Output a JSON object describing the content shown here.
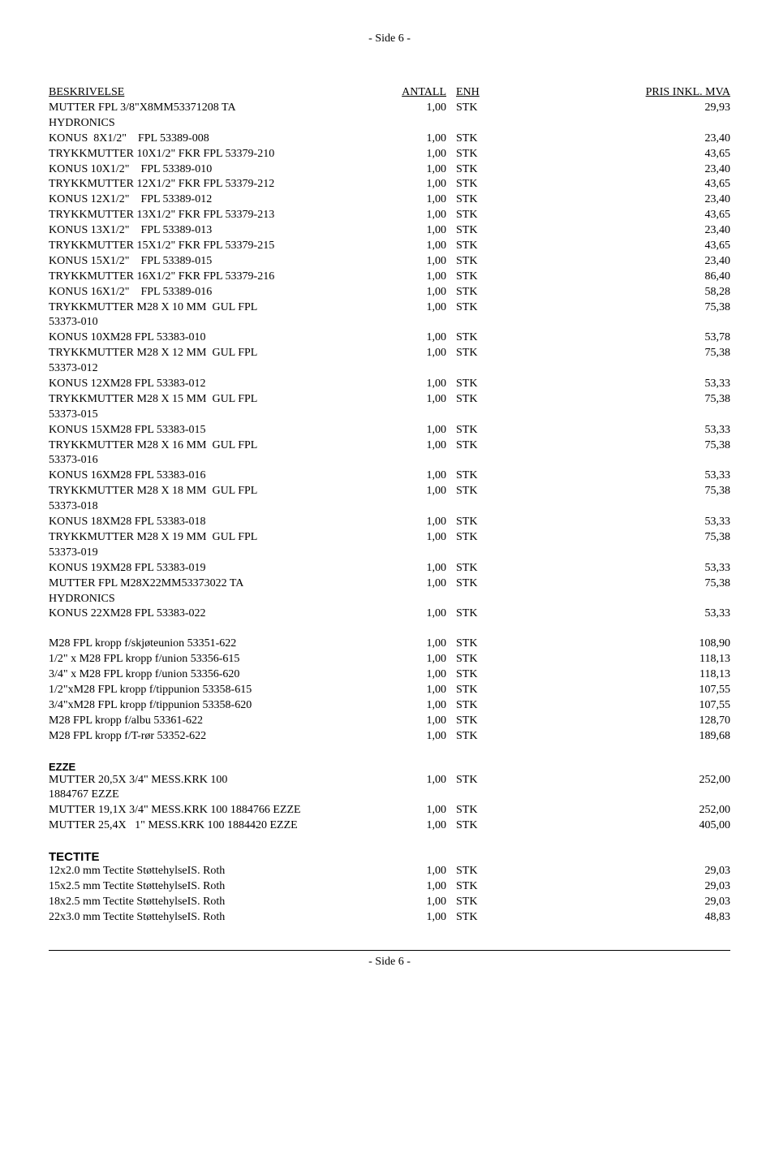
{
  "page_header": "- Side 6 -",
  "page_footer": "- Side 6 -",
  "headers": {
    "desc": "BESKRIVELSE",
    "qty": "ANTALL",
    "unit": "ENH",
    "price": "PRIS INKL. MVA"
  },
  "sections": [
    {
      "rows": [
        {
          "desc": "MUTTER FPL 3/8\"X8MM53371208 TA\nHYDRONICS",
          "qty": "1,00",
          "unit": "STK",
          "price": "29,93"
        },
        {
          "desc": "KONUS  8X1/2\"    FPL 53389-008",
          "qty": "1,00",
          "unit": "STK",
          "price": "23,40"
        },
        {
          "desc": "TRYKKMUTTER 10X1/2\" FKR FPL 53379-210",
          "qty": "1,00",
          "unit": "STK",
          "price": "43,65"
        },
        {
          "desc": "KONUS 10X1/2\"    FPL 53389-010",
          "qty": "1,00",
          "unit": "STK",
          "price": "23,40"
        },
        {
          "desc": "TRYKKMUTTER 12X1/2\" FKR FPL 53379-212",
          "qty": "1,00",
          "unit": "STK",
          "price": "43,65"
        },
        {
          "desc": "KONUS 12X1/2\"    FPL 53389-012",
          "qty": "1,00",
          "unit": "STK",
          "price": "23,40"
        },
        {
          "desc": "TRYKKMUTTER 13X1/2\" FKR FPL 53379-213",
          "qty": "1,00",
          "unit": "STK",
          "price": "43,65"
        },
        {
          "desc": "KONUS 13X1/2\"    FPL 53389-013",
          "qty": "1,00",
          "unit": "STK",
          "price": "23,40"
        },
        {
          "desc": "TRYKKMUTTER 15X1/2\" FKR FPL 53379-215",
          "qty": "1,00",
          "unit": "STK",
          "price": "43,65"
        },
        {
          "desc": "KONUS 15X1/2\"    FPL 53389-015",
          "qty": "1,00",
          "unit": "STK",
          "price": "23,40"
        },
        {
          "desc": "TRYKKMUTTER 16X1/2\" FKR FPL 53379-216",
          "qty": "1,00",
          "unit": "STK",
          "price": "86,40"
        },
        {
          "desc": "KONUS 16X1/2\"    FPL 53389-016",
          "qty": "1,00",
          "unit": "STK",
          "price": "58,28"
        },
        {
          "desc": "TRYKKMUTTER M28 X 10 MM  GUL FPL\n53373-010",
          "qty": "1,00",
          "unit": "STK",
          "price": "75,38"
        },
        {
          "desc": "KONUS 10XM28 FPL 53383-010",
          "qty": "1,00",
          "unit": "STK",
          "price": "53,78"
        },
        {
          "desc": "TRYKKMUTTER M28 X 12 MM  GUL FPL\n53373-012",
          "qty": "1,00",
          "unit": "STK",
          "price": "75,38"
        },
        {
          "desc": "KONUS 12XM28 FPL 53383-012",
          "qty": "1,00",
          "unit": "STK",
          "price": "53,33"
        },
        {
          "desc": "TRYKKMUTTER M28 X 15 MM  GUL FPL\n53373-015",
          "qty": "1,00",
          "unit": "STK",
          "price": "75,38"
        },
        {
          "desc": "KONUS 15XM28 FPL 53383-015",
          "qty": "1,00",
          "unit": "STK",
          "price": "53,33"
        },
        {
          "desc": "TRYKKMUTTER M28 X 16 MM  GUL FPL\n53373-016",
          "qty": "1,00",
          "unit": "STK",
          "price": "75,38"
        },
        {
          "desc": "KONUS 16XM28 FPL 53383-016",
          "qty": "1,00",
          "unit": "STK",
          "price": "53,33"
        },
        {
          "desc": "TRYKKMUTTER M28 X 18 MM  GUL FPL\n53373-018",
          "qty": "1,00",
          "unit": "STK",
          "price": "75,38"
        },
        {
          "desc": "KONUS 18XM28 FPL 53383-018",
          "qty": "1,00",
          "unit": "STK",
          "price": "53,33"
        },
        {
          "desc": "TRYKKMUTTER M28 X 19 MM  GUL FPL\n53373-019",
          "qty": "1,00",
          "unit": "STK",
          "price": "75,38"
        },
        {
          "desc": "KONUS 19XM28 FPL 53383-019",
          "qty": "1,00",
          "unit": "STK",
          "price": "53,33"
        },
        {
          "desc": "MUTTER FPL M28X22MM53373022 TA\nHYDRONICS",
          "qty": "1,00",
          "unit": "STK",
          "price": "75,38"
        },
        {
          "desc": "KONUS 22XM28 FPL 53383-022",
          "qty": "1,00",
          "unit": "STK",
          "price": "53,33"
        }
      ]
    },
    {
      "rows": [
        {
          "desc": "M28 FPL kropp f/skjøteunion 53351-622",
          "qty": "1,00",
          "unit": "STK",
          "price": "108,90"
        },
        {
          "desc": "1/2\" x M28 FPL kropp f/union 53356-615",
          "qty": "1,00",
          "unit": "STK",
          "price": "118,13"
        },
        {
          "desc": "3/4\" x M28 FPL kropp f/union 53356-620",
          "qty": "1,00",
          "unit": "STK",
          "price": "118,13"
        },
        {
          "desc": "1/2\"xM28 FPL kropp f/tippunion 53358-615",
          "qty": "1,00",
          "unit": "STK",
          "price": "107,55"
        },
        {
          "desc": "3/4\"xM28 FPL kropp f/tippunion 53358-620",
          "qty": "1,00",
          "unit": "STK",
          "price": "107,55"
        },
        {
          "desc": "M28 FPL kropp f/albu 53361-622",
          "qty": "1,00",
          "unit": "STK",
          "price": "128,70"
        },
        {
          "desc": "M28 FPL kropp f/T-rør 53352-622",
          "qty": "1,00",
          "unit": "STK",
          "price": "189,68"
        }
      ]
    },
    {
      "title": "EZZE",
      "title_class": "section-bold",
      "rows": [
        {
          "desc": "MUTTER 20,5X 3/4\" MESS.KRK 100\n1884767 EZZE",
          "qty": "1,00",
          "unit": "STK",
          "price": "252,00"
        },
        {
          "desc": "MUTTER 19,1X 3/4\" MESS.KRK 100 1884766 EZZE",
          "qty": "1,00",
          "unit": "STK",
          "price": "252,00"
        },
        {
          "desc": "MUTTER 25,4X   1\" MESS.KRK 100 1884420 EZZE",
          "qty": "1,00",
          "unit": "STK",
          "price": "405,00"
        }
      ]
    },
    {
      "title": "TECTITE",
      "title_class": "section-bold-big",
      "rows": [
        {
          "desc": "12x2.0 mm Tectite StøttehylseIS. Roth",
          "qty": "1,00",
          "unit": "STK",
          "price": "29,03"
        },
        {
          "desc": "15x2.5 mm Tectite StøttehylseIS. Roth",
          "qty": "1,00",
          "unit": "STK",
          "price": "29,03"
        },
        {
          "desc": "18x2.5 mm Tectite StøttehylseIS. Roth",
          "qty": "1,00",
          "unit": "STK",
          "price": "29,03"
        },
        {
          "desc": "22x3.0 mm Tectite StøttehylseIS. Roth",
          "qty": "1,00",
          "unit": "STK",
          "price": "48,83"
        }
      ]
    }
  ]
}
